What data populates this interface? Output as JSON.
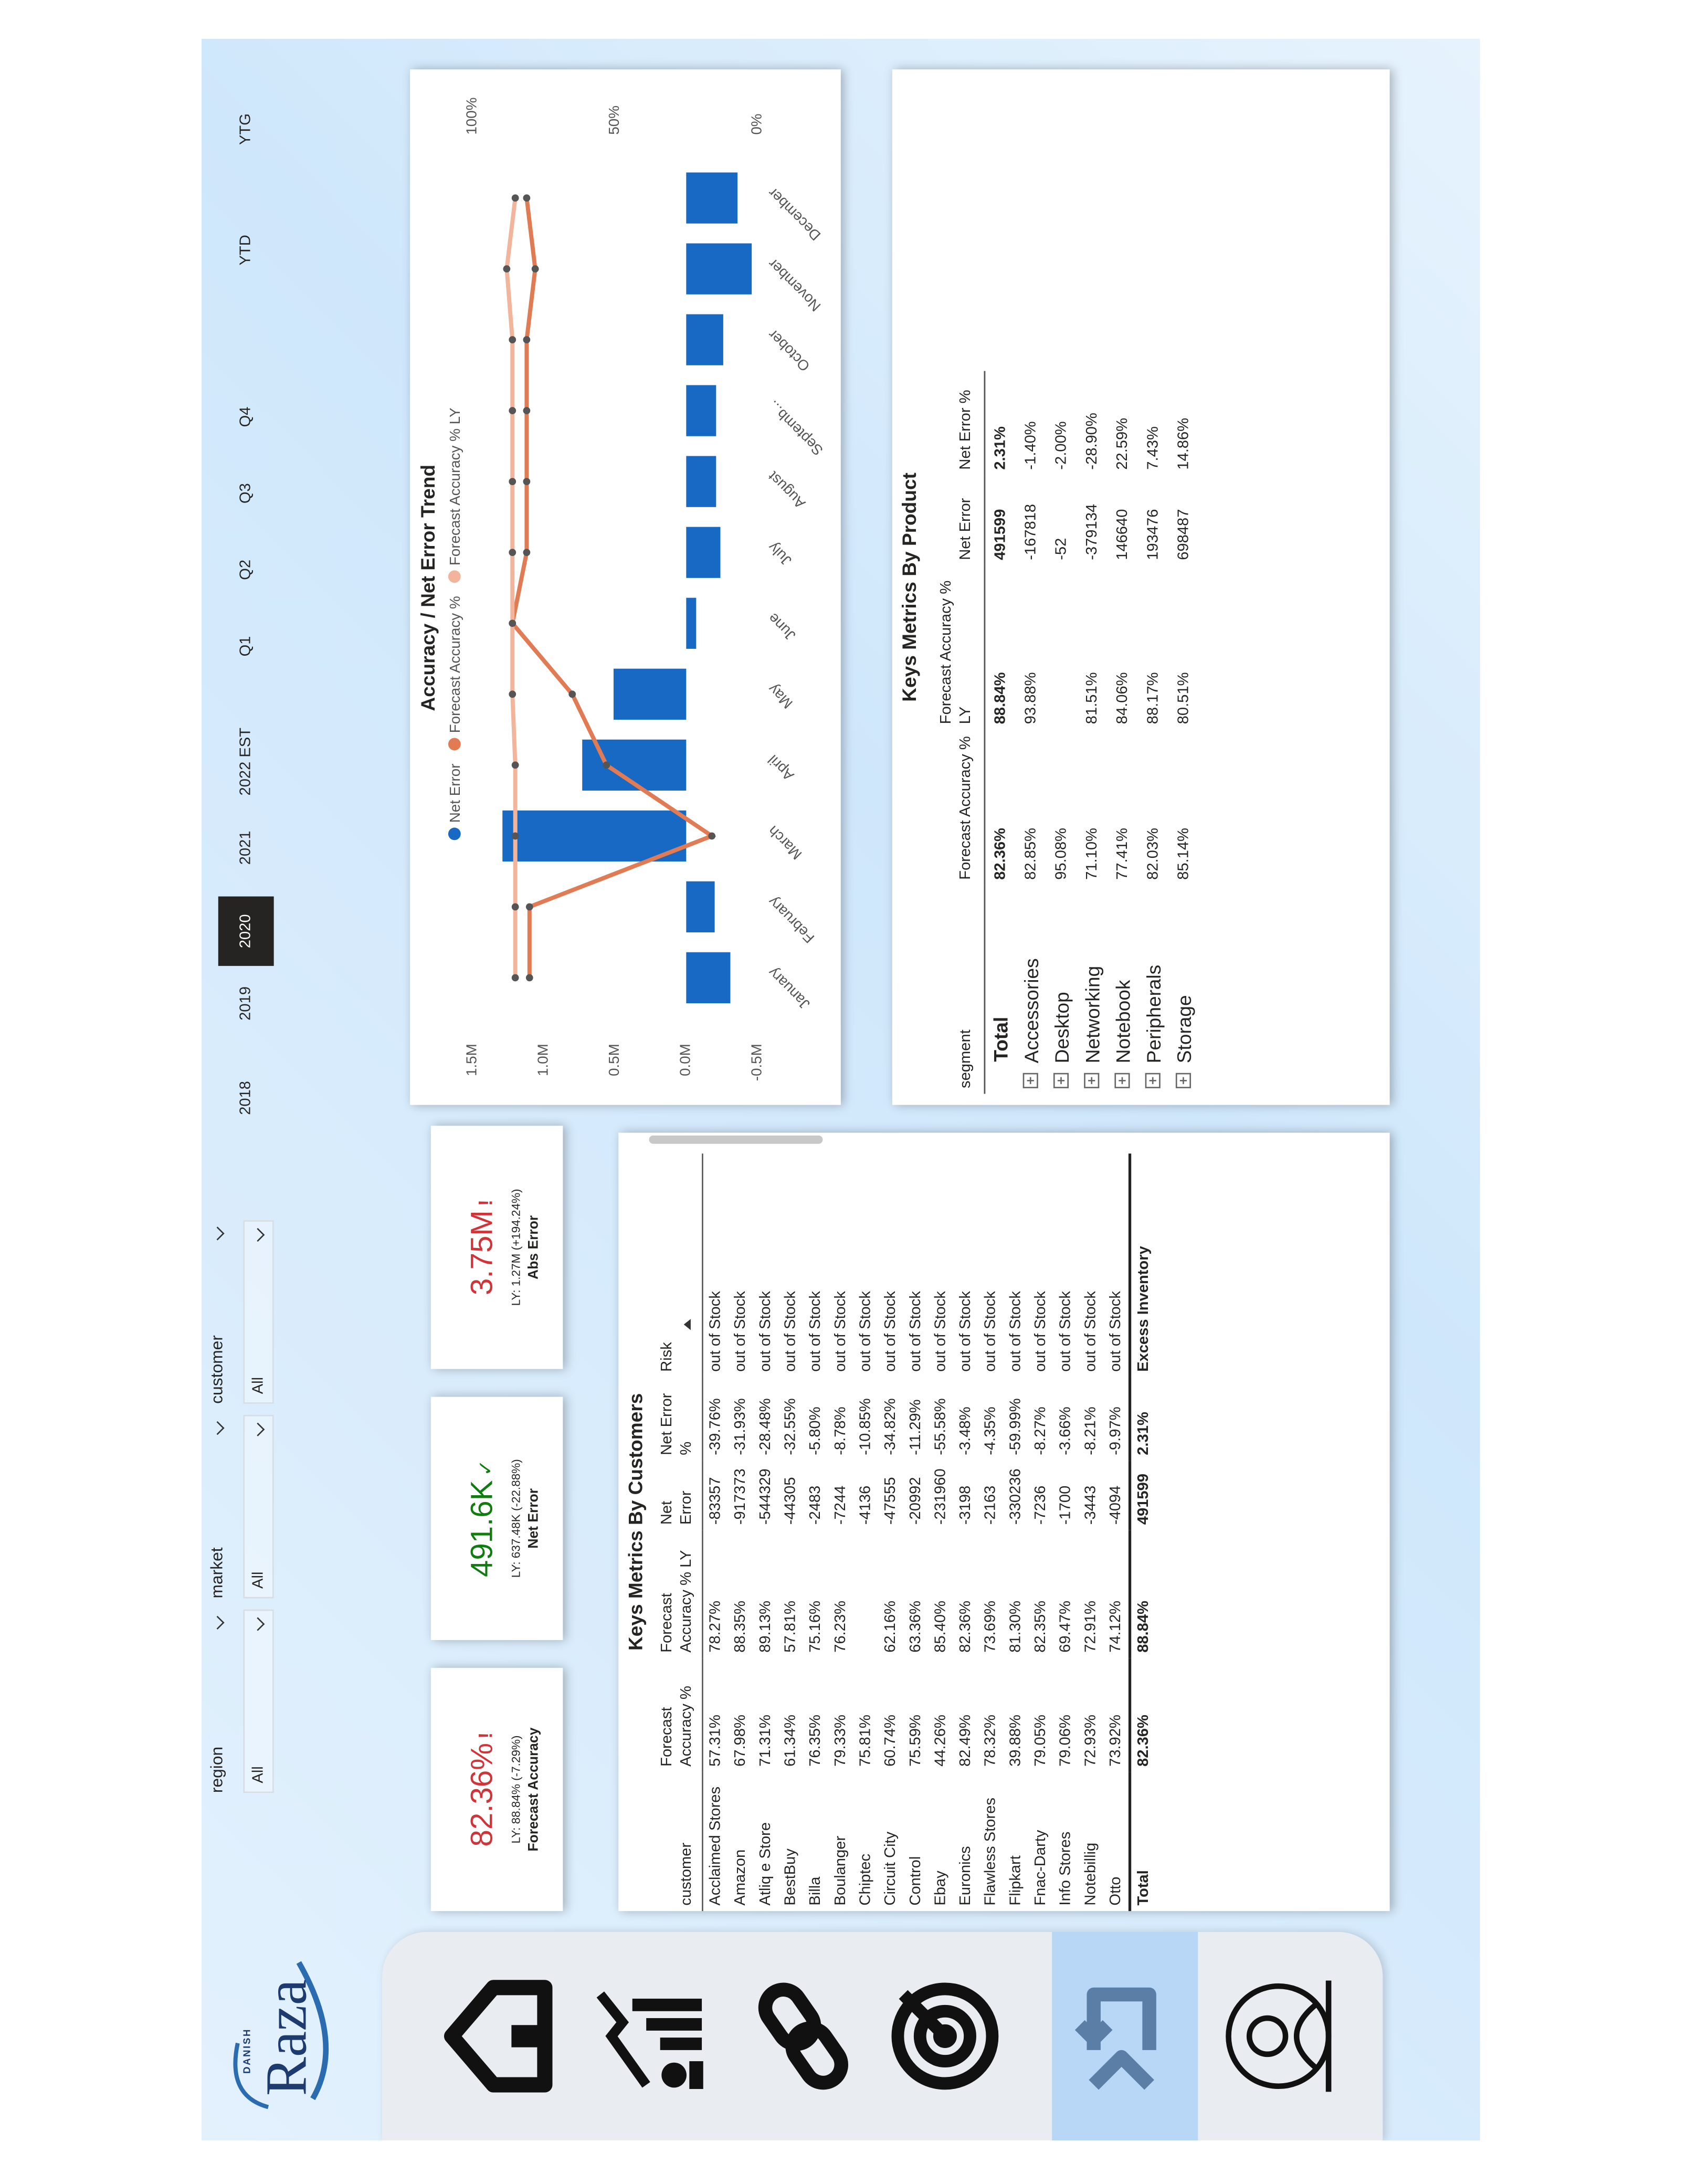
{
  "header": {
    "logo_small": "DANISH",
    "logo": "Raza"
  },
  "slicers": [
    {
      "label": "region",
      "value": "All"
    },
    {
      "label": "market",
      "value": "All"
    },
    {
      "label": "customer",
      "value": "All"
    }
  ],
  "periods": {
    "items": [
      "2018",
      "2019",
      "2020",
      "2021",
      "2022 EST",
      "Q1",
      "Q2",
      "Q3",
      "Q4",
      "YTD",
      "YTG"
    ],
    "selected_index": 2
  },
  "kpis": [
    {
      "value": "82.36%",
      "flag": "!",
      "ly": "LY: 88.84% (-7.29%)",
      "label": "Forecast Accuracy",
      "color": "#d13438"
    },
    {
      "value": "491.6K",
      "flag": "✓",
      "ly": "LY: 637.48K (-22.88%)",
      "label": "Net Error",
      "color": "#107c10"
    },
    {
      "value": "3.75M",
      "flag": "!",
      "ly": "LY: 1.27M (+194.24%)",
      "label": "Abs Error",
      "color": "#d13438"
    }
  ],
  "customers": {
    "title": "Keys Metrics By Customers",
    "columns": [
      "customer",
      "Forecast Accuracy %",
      "Forecast Accuracy % LY",
      "Net Error",
      "Net Error %",
      "Risk"
    ],
    "rows": [
      [
        "Acclaimed Stores",
        "57.31%",
        "78.27%",
        "-83357",
        "-39.76%",
        "out of Stock"
      ],
      [
        "Amazon",
        "67.98%",
        "88.35%",
        "-917373",
        "-31.93%",
        "out of Stock"
      ],
      [
        "Atliq e Store",
        "71.31%",
        "89.13%",
        "-544329",
        "-28.48%",
        "out of Stock"
      ],
      [
        "BestBuy",
        "61.34%",
        "57.81%",
        "-44305",
        "-32.55%",
        "out of Stock"
      ],
      [
        "Billa",
        "76.35%",
        "75.16%",
        "-2483",
        "-5.80%",
        "out of Stock"
      ],
      [
        "Boulanger",
        "79.33%",
        "76.23%",
        "-7244",
        "-8.78%",
        "out of Stock"
      ],
      [
        "Chiptec",
        "75.81%",
        null,
        "-4136",
        "-10.85%",
        "out of Stock"
      ],
      [
        "Circuit City",
        "60.74%",
        "62.16%",
        "-47555",
        "-34.82%",
        "out of Stock"
      ],
      [
        "Control",
        "75.59%",
        "63.36%",
        "-20992",
        "-11.29%",
        "out of Stock"
      ],
      [
        "Ebay",
        "44.26%",
        "85.40%",
        "-231960",
        "-55.58%",
        "out of Stock"
      ],
      [
        "Euronics",
        "82.49%",
        "82.36%",
        "-3198",
        "-3.48%",
        "out of Stock"
      ],
      [
        "Flawless Stores",
        "78.32%",
        "73.69%",
        "-2163",
        "-4.35%",
        "out of Stock"
      ],
      [
        "Flipkart",
        "39.88%",
        "81.30%",
        "-330236",
        "-59.99%",
        "out of Stock"
      ],
      [
        "Fnac-Darty",
        "79.05%",
        "82.35%",
        "-7236",
        "-8.27%",
        "out of Stock"
      ],
      [
        "Info Stores",
        "79.06%",
        "69.47%",
        "-1700",
        "-3.66%",
        "out of Stock"
      ],
      [
        "Notebillig",
        "72.93%",
        "72.91%",
        "-3443",
        "-8.21%",
        "out of Stock"
      ],
      [
        "Otto",
        "73.92%",
        "74.12%",
        "-4094",
        "-9.97%",
        "out of Stock"
      ]
    ],
    "total": [
      "Total",
      "82.36%",
      "88.84%",
      "491599",
      "2.31%",
      "Excess Inventory"
    ]
  },
  "products": {
    "title": "Keys Metrics By Product",
    "columns": [
      "segment",
      "Forecast Accuracy %",
      "Forecast Accuracy % LY",
      "Net Error",
      "Net Error %"
    ],
    "rows": [
      [
        "Total",
        "82.36%",
        "88.84%",
        "491599",
        "2.31%"
      ],
      [
        "Accessories",
        "82.85%",
        "93.88%",
        "-167818",
        "-1.40%"
      ],
      [
        "Desktop",
        "95.08%",
        null,
        "-52",
        "-2.00%"
      ],
      [
        "Networking",
        "71.10%",
        "81.51%",
        "-379134",
        "-28.90%"
      ],
      [
        "Notebook",
        "77.41%",
        "84.06%",
        "146640",
        "22.59%"
      ],
      [
        "Peripherals",
        "82.03%",
        "88.17%",
        "193476",
        "7.43%"
      ],
      [
        "Storage",
        "85.14%",
        "80.51%",
        "698487",
        "14.86%"
      ]
    ]
  },
  "chart_data": {
    "type": "combo",
    "title": "Accuracy / Net Error Trend",
    "categories": [
      "January",
      "February",
      "March",
      "April",
      "May",
      "June",
      "July",
      "August",
      "Septemb...",
      "October",
      "November",
      "December"
    ],
    "series": [
      {
        "name": "Net Error",
        "type": "bar",
        "color": "#1769c4",
        "values": [
          -0.31,
          -0.2,
          1.29,
          0.73,
          0.51,
          -0.07,
          -0.24,
          -0.21,
          -0.21,
          -0.26,
          -0.46,
          -0.36
        ]
      },
      {
        "name": "Forecast Accuracy %",
        "type": "line",
        "axis": "y2",
        "color": "#e07b54",
        "values": [
          80,
          80,
          16,
          53,
          65,
          86,
          81,
          81,
          81,
          81,
          78,
          81
        ]
      },
      {
        "name": "Forecast Accuracy % LY",
        "type": "line",
        "axis": "y2",
        "color": "#f2b49b",
        "values": [
          85,
          85,
          85,
          85,
          86,
          86,
          86,
          86,
          86,
          86,
          88,
          85
        ]
      }
    ],
    "ylim": [
      -0.5,
      1.5
    ],
    "yticks": [
      {
        "value": -0.5,
        "label": "-0.5M"
      },
      {
        "value": 0,
        "label": "0.0M"
      },
      {
        "value": 0.5,
        "label": "0.5M"
      },
      {
        "value": 1,
        "label": "1.0M"
      },
      {
        "value": 1.5,
        "label": "1.5M"
      }
    ],
    "y2lim": [
      0,
      100
    ],
    "y2ticks": [
      {
        "value": 0,
        "label": "0%"
      },
      {
        "value": 50,
        "label": "50%"
      },
      {
        "value": 100,
        "label": "100%"
      }
    ],
    "grid": false
  }
}
